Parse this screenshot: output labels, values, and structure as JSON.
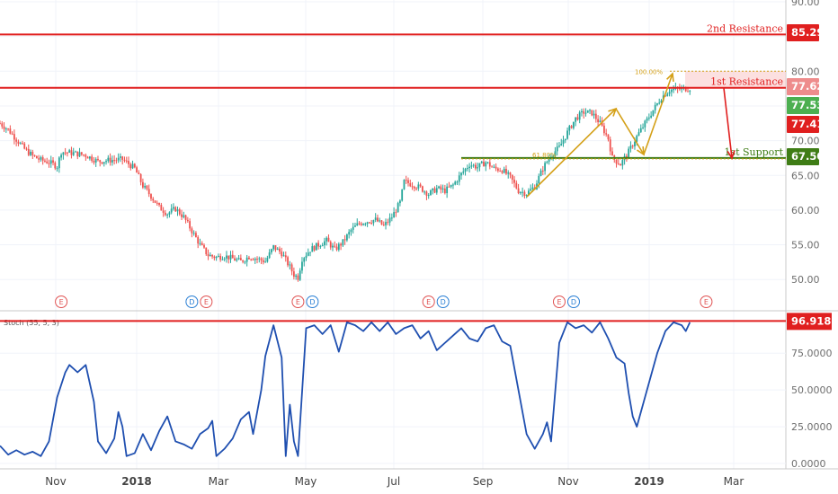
{
  "colors": {
    "background": "#ffffff",
    "grid": "#f0f3fa",
    "axis_line": "#c8c8c8",
    "resistance": "#e01f1f",
    "support": "#3f7d16",
    "fib": "#d4a017",
    "arrow_down": "#e01f1f",
    "zone": "#f9c6c6",
    "candle_up": "#26a69a",
    "candle_down": "#ef5350",
    "stoch": "#1f4fb0",
    "badge_price": "#4caf50",
    "badge_red": "#e01f1f",
    "badge_green": "#3f7d16",
    "badge_stoch": "#e01f1f"
  },
  "chart_data": [
    {
      "type": "candlestick",
      "panel": "price",
      "ylim": [
        46.0,
        90.0
      ],
      "y_ticks": [
        "90.00",
        "85.00",
        "80.00",
        "75.00",
        "70.00",
        "65.00",
        "60.00",
        "55.00",
        "50.00"
      ],
      "x_ticks": [
        "Nov",
        "2018",
        "Mar",
        "May",
        "Jul",
        "Sep",
        "Nov",
        "2019",
        "Mar"
      ],
      "x_ticks_bold": [
        false,
        true,
        false,
        false,
        false,
        false,
        false,
        true,
        false
      ],
      "close_path": [
        [
          0,
          72.5
        ],
        [
          2,
          71.6
        ],
        [
          4,
          70.2
        ],
        [
          6,
          68.8
        ],
        [
          8,
          67.8
        ],
        [
          10,
          67.2
        ],
        [
          12,
          66.9
        ],
        [
          14,
          66.3
        ],
        [
          15,
          68.4
        ],
        [
          18,
          68.2
        ],
        [
          21,
          67.9
        ],
        [
          24,
          67.0
        ],
        [
          27,
          67.2
        ],
        [
          30,
          67.3
        ],
        [
          33,
          66.0
        ],
        [
          35,
          63.5
        ],
        [
          37,
          62.0
        ],
        [
          39,
          60.4
        ],
        [
          41,
          59.5
        ],
        [
          43,
          60.2
        ],
        [
          45,
          59.0
        ],
        [
          47,
          57.0
        ],
        [
          49,
          55.0
        ],
        [
          51,
          53.5
        ],
        [
          53,
          53.2
        ],
        [
          55,
          53.4
        ],
        [
          57,
          53.0
        ],
        [
          59,
          52.6
        ],
        [
          61,
          53.3
        ],
        [
          63,
          53.0
        ],
        [
          65,
          52.6
        ],
        [
          67,
          54.7
        ],
        [
          69,
          53.8
        ],
        [
          71,
          51.8
        ],
        [
          72,
          50.7
        ],
        [
          73,
          50.3
        ],
        [
          74,
          53.0
        ],
        [
          76,
          54.3
        ],
        [
          78,
          55.0
        ],
        [
          80,
          55.6
        ],
        [
          82,
          54.3
        ],
        [
          84,
          55.4
        ],
        [
          86,
          57.1
        ],
        [
          88,
          58.1
        ],
        [
          90,
          58.4
        ],
        [
          92,
          58.6
        ],
        [
          94,
          57.7
        ],
        [
          96,
          59.0
        ],
        [
          98,
          61.1
        ],
        [
          99,
          64.1
        ],
        [
          101,
          63.7
        ],
        [
          103,
          63.2
        ],
        [
          105,
          62.3
        ],
        [
          107,
          63.1
        ],
        [
          109,
          62.8
        ],
        [
          111,
          63.6
        ],
        [
          113,
          65.2
        ],
        [
          115,
          66.6
        ],
        [
          117,
          66.2
        ],
        [
          119,
          66.9
        ],
        [
          121,
          66.0
        ],
        [
          123,
          65.8
        ],
        [
          125,
          64.7
        ],
        [
          127,
          62.8
        ],
        [
          129,
          62.4
        ],
        [
          131,
          63.4
        ],
        [
          133,
          66.0
        ],
        [
          135,
          68.0
        ],
        [
          137,
          69.0
        ],
        [
          139,
          71.2
        ],
        [
          141,
          73.2
        ],
        [
          143,
          74.1
        ],
        [
          145,
          74.0
        ],
        [
          147,
          72.5
        ],
        [
          149,
          70.3
        ],
        [
          150,
          67.5
        ],
        [
          152,
          66.6
        ],
        [
          154,
          68.4
        ],
        [
          156,
          70.6
        ],
        [
          158,
          72.5
        ],
        [
          160,
          74.4
        ],
        [
          162,
          76.2
        ],
        [
          164,
          77.3
        ],
        [
          166,
          77.4
        ],
        [
          168,
          77.5
        ],
        [
          169,
          77.53
        ]
      ],
      "ohlc_note": "Daily OHLC bars, ~Aug 2017 to mid Feb 2019",
      "levels": [
        {
          "name": "2nd Resistance",
          "value": 85.29
        },
        {
          "name": "1st Resistance",
          "value": 77.62
        },
        {
          "name": "1st Support",
          "value": 67.5
        }
      ],
      "fib_labels": [
        {
          "label": "100.00%",
          "value": 80.0
        },
        {
          "label": "61.80%",
          "value": 67.5
        }
      ],
      "price_badges": [
        "85.29",
        "77.62",
        "77.53",
        "77.41",
        "67.50"
      ],
      "events": [
        {
          "t": 15,
          "labels": [
            "E"
          ]
        },
        {
          "t": 47,
          "labels": [
            "D",
            "E"
          ]
        },
        {
          "t": 73,
          "labels": [
            "E",
            "D"
          ]
        },
        {
          "t": 105,
          "labels": [
            "E",
            "D"
          ]
        },
        {
          "t": 137,
          "labels": [
            "E",
            "D"
          ]
        },
        {
          "t": 173,
          "labels": [
            "E"
          ]
        }
      ]
    },
    {
      "type": "line",
      "panel": "oscillator",
      "title": "Stoch (55, 5, 3)",
      "ylim": [
        0,
        100
      ],
      "y_ticks": [
        "100",
        "75.0000",
        "50.0000",
        "25.0000",
        "0.0000"
      ],
      "resistance_value": 96.9187,
      "resistance_label": "96.9187",
      "series": [
        {
          "name": "Stoch",
          "points": [
            [
              0,
              12
            ],
            [
              2,
              6
            ],
            [
              4,
              9
            ],
            [
              6,
              6
            ],
            [
              8,
              8
            ],
            [
              10,
              5
            ],
            [
              12,
              15
            ],
            [
              14,
              45
            ],
            [
              16,
              62
            ],
            [
              17,
              67
            ],
            [
              19,
              62
            ],
            [
              21,
              67
            ],
            [
              23,
              42
            ],
            [
              24,
              15
            ],
            [
              26,
              7
            ],
            [
              28,
              17
            ],
            [
              29,
              35
            ],
            [
              30,
              25
            ],
            [
              31,
              5
            ],
            [
              33,
              7
            ],
            [
              35,
              20
            ],
            [
              37,
              9
            ],
            [
              39,
              22
            ],
            [
              41,
              32
            ],
            [
              43,
              15
            ],
            [
              45,
              13
            ],
            [
              47,
              10
            ],
            [
              49,
              20
            ],
            [
              51,
              24
            ],
            [
              52,
              29
            ],
            [
              53,
              5
            ],
            [
              55,
              10
            ],
            [
              57,
              17
            ],
            [
              59,
              30
            ],
            [
              61,
              35
            ],
            [
              62,
              20
            ],
            [
              64,
              50
            ],
            [
              65,
              73
            ],
            [
              67,
              94
            ],
            [
              69,
              72
            ],
            [
              70,
              5
            ],
            [
              71,
              40
            ],
            [
              72,
              15
            ],
            [
              73,
              5
            ],
            [
              75,
              92
            ],
            [
              77,
              94
            ],
            [
              79,
              88
            ],
            [
              81,
              94
            ],
            [
              83,
              76
            ],
            [
              85,
              96
            ],
            [
              87,
              94
            ],
            [
              89,
              90
            ],
            [
              91,
              96
            ],
            [
              93,
              90
            ],
            [
              95,
              96
            ],
            [
              97,
              88
            ],
            [
              99,
              92
            ],
            [
              101,
              94
            ],
            [
              103,
              85
            ],
            [
              105,
              90
            ],
            [
              107,
              77
            ],
            [
              109,
              82
            ],
            [
              111,
              87
            ],
            [
              113,
              92
            ],
            [
              115,
              85
            ],
            [
              117,
              83
            ],
            [
              119,
              92
            ],
            [
              121,
              94
            ],
            [
              123,
              83
            ],
            [
              125,
              80
            ],
            [
              127,
              50
            ],
            [
              129,
              20
            ],
            [
              131,
              10
            ],
            [
              133,
              20
            ],
            [
              134,
              28
            ],
            [
              135,
              15
            ],
            [
              137,
              82
            ],
            [
              139,
              96
            ],
            [
              141,
              92
            ],
            [
              143,
              94
            ],
            [
              145,
              89
            ],
            [
              147,
              96
            ],
            [
              149,
              85
            ],
            [
              151,
              72
            ],
            [
              153,
              68
            ],
            [
              154,
              48
            ],
            [
              155,
              32
            ],
            [
              156,
              25
            ],
            [
              157,
              35
            ],
            [
              159,
              55
            ],
            [
              161,
              75
            ],
            [
              163,
              90
            ],
            [
              165,
              96
            ],
            [
              167,
              94
            ],
            [
              168,
              90
            ],
            [
              169,
              96
            ]
          ]
        }
      ]
    }
  ]
}
